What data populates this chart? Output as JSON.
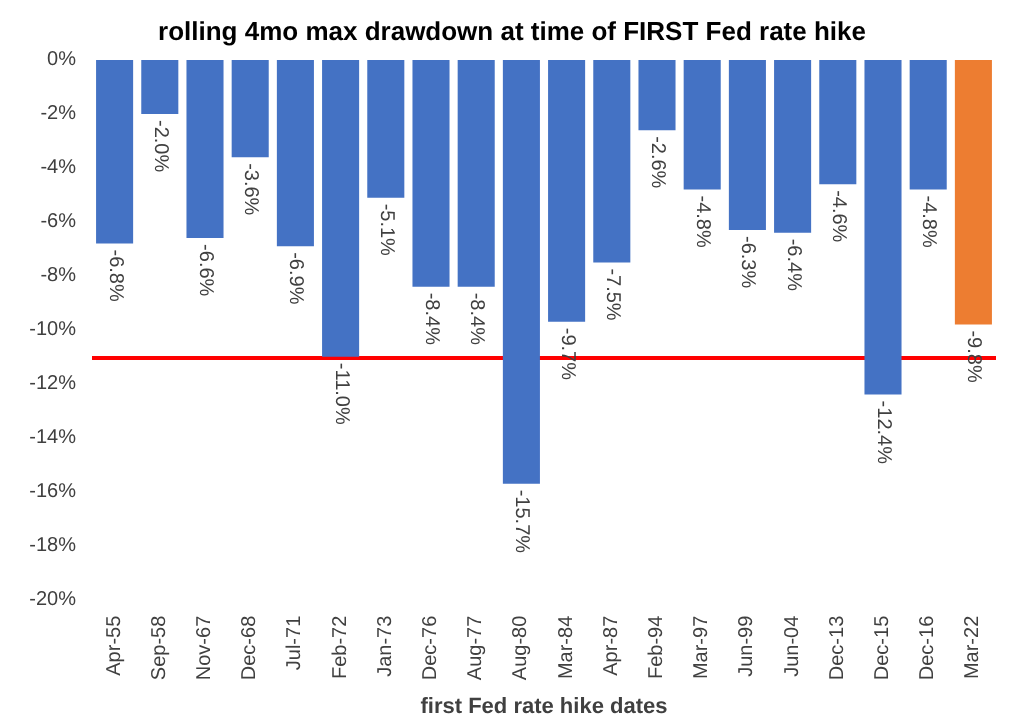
{
  "chart_data": {
    "type": "bar",
    "title": "rolling 4mo max drawdown at time of FIRST Fed rate hike",
    "xlabel": "first Fed rate hike dates",
    "categories": [
      "Apr-55",
      "Sep-58",
      "Nov-67",
      "Dec-68",
      "Jul-71",
      "Feb-72",
      "Jan-73",
      "Dec-76",
      "Aug-77",
      "Aug-80",
      "Mar-84",
      "Apr-87",
      "Feb-94",
      "Mar-97",
      "Jun-99",
      "Jun-04",
      "Dec-13",
      "Dec-15",
      "Dec-16",
      "Mar-22"
    ],
    "values": [
      -6.8,
      -2.0,
      -6.6,
      -3.6,
      -6.9,
      -11.0,
      -5.1,
      -8.4,
      -8.4,
      -15.7,
      -9.7,
      -7.5,
      -2.6,
      -4.8,
      -6.3,
      -6.4,
      -4.6,
      -12.4,
      -4.8,
      -9.8
    ],
    "value_labels": [
      "-6.8%",
      "-2.0%",
      "-6.6%",
      "-3.6%",
      "-6.9%",
      "-11.0%",
      "-5.1%",
      "-8.4%",
      "-8.4%",
      "-15.7%",
      "-9.7%",
      "-7.5%",
      "-2.6%",
      "-4.8%",
      "-6.3%",
      "-6.4%",
      "-4.6%",
      "-12.4%",
      "-4.8%",
      "-9.8%"
    ],
    "colors": [
      "#4472c4",
      "#4472c4",
      "#4472c4",
      "#4472c4",
      "#4472c4",
      "#4472c4",
      "#4472c4",
      "#4472c4",
      "#4472c4",
      "#4472c4",
      "#4472c4",
      "#4472c4",
      "#4472c4",
      "#4472c4",
      "#4472c4",
      "#4472c4",
      "#4472c4",
      "#4472c4",
      "#4472c4",
      "#ed7d31"
    ],
    "ylim": [
      -20,
      0
    ],
    "yticks": [
      {
        "value": -20,
        "label": "-20%"
      },
      {
        "value": -18,
        "label": "-18%"
      },
      {
        "value": -16,
        "label": "-16%"
      },
      {
        "value": -14,
        "label": "-14%"
      },
      {
        "value": -12,
        "label": "-12%"
      },
      {
        "value": -10,
        "label": "-10%"
      },
      {
        "value": -8,
        "label": "-8%"
      },
      {
        "value": -6,
        "label": "-6%"
      },
      {
        "value": -4,
        "label": "-4%"
      },
      {
        "value": -2,
        "label": "-2%"
      },
      {
        "value": 0,
        "label": "0%"
      }
    ],
    "ref_lines": [
      {
        "axis": "y",
        "value": -11.0,
        "color": "#ff0000"
      }
    ],
    "grid": false
  }
}
